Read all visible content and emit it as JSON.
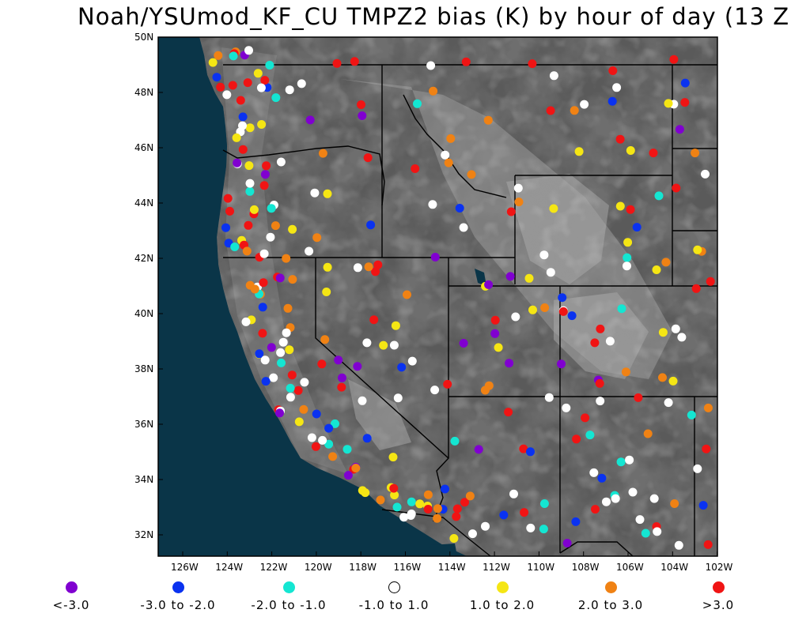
{
  "title": "Noah/YSUmod_KF_CU TMPZ2 bias (K) by hour of day (13 Z",
  "map": {
    "lat_labels": [
      "50N",
      "48N",
      "46N",
      "44N",
      "42N",
      "40N",
      "38N",
      "36N",
      "34N",
      "32N"
    ],
    "lon_labels": [
      "126W",
      "124W",
      "122W",
      "120W",
      "118W",
      "116W",
      "114W",
      "112W",
      "110W",
      "108W",
      "106W",
      "104W",
      "102W"
    ],
    "colors": {
      "ocean": "#0a3548",
      "land_dark": "#4a4a4a",
      "land_mid": "#7a7a7a",
      "land_light": "#b4b4b4",
      "border": "#000000"
    }
  },
  "legend": [
    {
      "label": "<-3.0",
      "color": "#8000d0"
    },
    {
      "label": "-3.0 to -2.0",
      "color": "#0a32f0"
    },
    {
      "label": "-2.0 to -1.0",
      "color": "#14e6d2"
    },
    {
      "label": "-1.0 to 1.0",
      "color": "#ffffff"
    },
    {
      "label": "1.0 to 2.0",
      "color": "#f5e614"
    },
    {
      "label": "2.0 to 3.0",
      "color": "#f08214"
    },
    {
      "label": ">3.0",
      "color": "#f01414"
    }
  ]
}
